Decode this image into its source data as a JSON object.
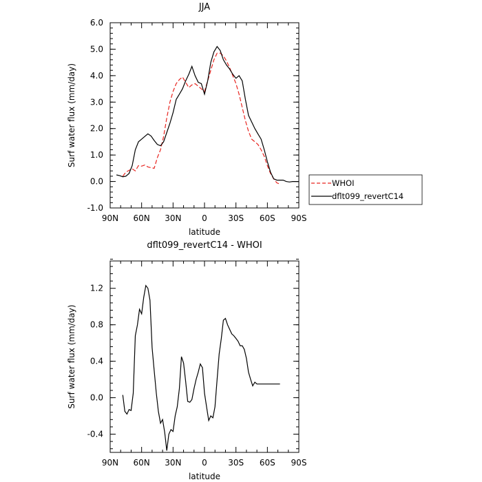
{
  "chart_data": [
    {
      "type": "line",
      "title": "JJA",
      "xlabel": "latitude",
      "ylabel": "Surf water flux (mm/day)",
      "xlim": [
        90,
        -90
      ],
      "ylim": [
        -1.0,
        6.0
      ],
      "x_ticks": [
        90,
        60,
        30,
        0,
        -30,
        -60,
        -90
      ],
      "x_tick_labels": [
        "90N",
        "60N",
        "30N",
        "0",
        "30S",
        "60S",
        "90S"
      ],
      "y_ticks": [
        -1.0,
        0.0,
        1.0,
        2.0,
        3.0,
        4.0,
        5.0,
        6.0
      ],
      "y_tick_labels": [
        "-1.0",
        "0.0",
        "1.0",
        "2.0",
        "3.0",
        "4.0",
        "5.0",
        "6.0"
      ],
      "legend": "right",
      "series": [
        {
          "name": "WHOI",
          "color": "#e8241f",
          "dash": "dashed",
          "x": [
            78,
            75,
            72,
            69,
            66,
            63,
            60,
            57,
            54,
            51,
            48,
            45,
            42,
            39,
            36,
            33,
            30,
            27,
            24,
            21,
            18,
            15,
            12,
            9,
            6,
            3,
            0,
            -3,
            -6,
            -9,
            -12,
            -15,
            -18,
            -21,
            -24,
            -27,
            -30,
            -33,
            -36,
            -39,
            -42,
            -45,
            -48,
            -51,
            -54,
            -57,
            -60,
            -63,
            -66,
            -69,
            -72
          ],
          "values": [
            0.2,
            0.35,
            0.42,
            0.48,
            0.4,
            0.6,
            0.58,
            0.62,
            0.55,
            0.52,
            0.5,
            0.9,
            1.2,
            1.7,
            2.4,
            3.0,
            3.4,
            3.7,
            3.85,
            3.95,
            3.75,
            3.55,
            3.65,
            3.7,
            3.6,
            3.5,
            3.4,
            3.8,
            4.2,
            4.6,
            4.85,
            4.85,
            4.75,
            4.55,
            4.3,
            4.0,
            3.7,
            3.3,
            2.8,
            2.3,
            1.9,
            1.6,
            1.5,
            1.4,
            1.2,
            0.95,
            0.6,
            0.3,
            0.1,
            -0.05,
            -0.1
          ]
        },
        {
          "name": "dflt099_revertC14",
          "color": "#000000",
          "dash": "solid",
          "x": [
            84,
            81,
            78,
            75,
            72,
            69,
            66,
            63,
            60,
            57,
            54,
            51,
            48,
            45,
            42,
            39,
            36,
            33,
            30,
            27,
            24,
            21,
            18,
            15,
            12,
            9,
            6,
            3,
            0,
            -3,
            -6,
            -9,
            -12,
            -15,
            -18,
            -21,
            -24,
            -27,
            -30,
            -33,
            -36,
            -39,
            -42,
            -45,
            -48,
            -51,
            -54,
            -57,
            -60,
            -63,
            -66,
            -69,
            -72,
            -75,
            -78,
            -81,
            -84,
            -87,
            -90
          ],
          "values": [
            0.25,
            0.22,
            0.18,
            0.2,
            0.3,
            0.6,
            1.2,
            1.5,
            1.6,
            1.7,
            1.8,
            1.72,
            1.55,
            1.4,
            1.35,
            1.5,
            1.85,
            2.2,
            2.6,
            3.1,
            3.3,
            3.5,
            3.8,
            4.05,
            4.35,
            4.0,
            3.75,
            3.7,
            3.3,
            3.8,
            4.5,
            4.9,
            5.1,
            4.95,
            4.6,
            4.4,
            4.25,
            4.05,
            3.9,
            4.0,
            3.8,
            3.1,
            2.5,
            2.25,
            2.0,
            1.8,
            1.6,
            1.2,
            0.75,
            0.35,
            0.1,
            0.05,
            0.05,
            0.05,
            0.0,
            -0.02,
            0.0,
            0.0,
            0.0
          ]
        }
      ]
    },
    {
      "type": "line",
      "title": "dflt099_revertC14 - WHOI",
      "xlabel": "latitude",
      "ylabel": "Surf water flux (mm/day)",
      "xlim": [
        90,
        -90
      ],
      "ylim": [
        -0.6,
        1.5
      ],
      "x_ticks": [
        90,
        60,
        30,
        0,
        -30,
        -60,
        -90
      ],
      "x_tick_labels": [
        "90N",
        "60N",
        "30N",
        "0",
        "30S",
        "60S",
        "90S"
      ],
      "y_ticks": [
        -0.4,
        0.0,
        0.4,
        0.8,
        1.2
      ],
      "y_tick_labels": [
        "-0.4",
        "0.0",
        "0.4",
        "0.8",
        "1.2"
      ],
      "series": [
        {
          "color": "#000000",
          "dash": "solid",
          "x": [
            78,
            76,
            74,
            72,
            70,
            68,
            66,
            64,
            62,
            60,
            58,
            56,
            54,
            52,
            50,
            48,
            46,
            44,
            42,
            40,
            38,
            36,
            34,
            32,
            30,
            28,
            26,
            24,
            22,
            20,
            18,
            16,
            14,
            12,
            10,
            8,
            6,
            4,
            2,
            0,
            -2,
            -4,
            -6,
            -8,
            -10,
            -12,
            -14,
            -16,
            -18,
            -20,
            -22,
            -24,
            -26,
            -28,
            -30,
            -32,
            -34,
            -36,
            -38,
            -40,
            -42,
            -44,
            -46,
            -48,
            -50,
            -52,
            -54,
            -56,
            -58,
            -60,
            -62,
            -64,
            -66,
            -68,
            -70,
            -72
          ],
          "values": [
            0.03,
            -0.15,
            -0.18,
            -0.13,
            -0.14,
            0.05,
            0.68,
            0.8,
            0.97,
            0.92,
            1.1,
            1.23,
            1.2,
            1.07,
            0.55,
            0.3,
            0.05,
            -0.15,
            -0.28,
            -0.24,
            -0.38,
            -0.58,
            -0.4,
            -0.35,
            -0.37,
            -0.2,
            -0.1,
            0.1,
            0.45,
            0.38,
            0.18,
            -0.04,
            -0.05,
            -0.02,
            0.1,
            0.2,
            0.28,
            0.37,
            0.33,
            0.05,
            -0.1,
            -0.25,
            -0.2,
            -0.22,
            -0.1,
            0.2,
            0.48,
            0.65,
            0.85,
            0.87,
            0.8,
            0.75,
            0.7,
            0.68,
            0.65,
            0.62,
            0.57,
            0.57,
            0.53,
            0.43,
            0.28,
            0.2,
            0.13,
            0.17,
            0.15,
            0.15,
            0.15,
            0.15,
            0.15,
            0.15,
            0.15,
            0.15,
            0.15,
            0.15,
            0.15,
            0.15
          ]
        }
      ]
    }
  ]
}
